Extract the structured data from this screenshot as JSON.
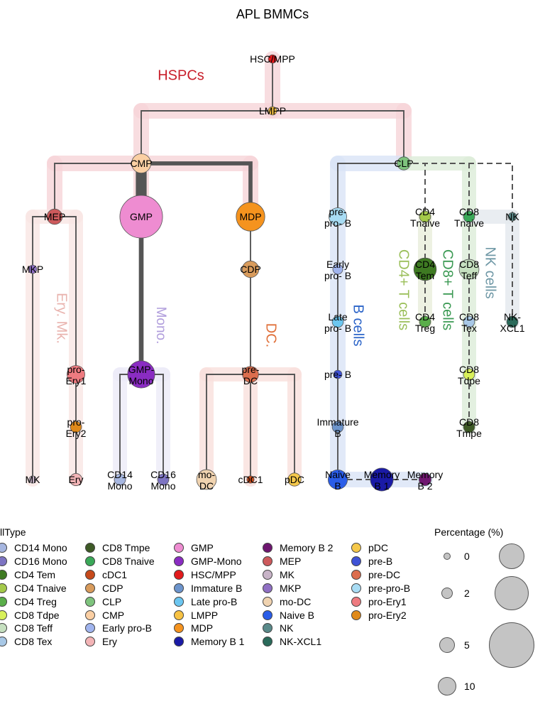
{
  "title": "APL BMMCs",
  "lineages": [
    {
      "id": "hspc",
      "label": "HSPCs",
      "color": "#f6d5d8",
      "textColor": "#c81e2a"
    },
    {
      "id": "ery",
      "label": "Ery. Mk.",
      "color": "#f9e6e4",
      "textColor": "#e9b3ae"
    },
    {
      "id": "mono",
      "label": "Mono.",
      "color": "#ecebf8",
      "textColor": "#b09ddc"
    },
    {
      "id": "dc",
      "label": "DC.",
      "color": "#f9e0dc",
      "textColor": "#e0703a"
    },
    {
      "id": "b",
      "label": "B cells",
      "color": "#d9e4f6",
      "textColor": "#2b64c8"
    },
    {
      "id": "cd4",
      "label": "CD4+ T cells",
      "color": "#e8eedb",
      "textColor": "#9bbf5a"
    },
    {
      "id": "cd8",
      "label": "CD8+ T cells",
      "color": "#dcecd8",
      "textColor": "#3c9a54"
    },
    {
      "id": "nk",
      "label": "NK cells",
      "color": "#e3e9ee",
      "textColor": "#6f98a6"
    }
  ],
  "nodes": [
    {
      "id": "HSC/MPP",
      "label": "HSC/MPP",
      "color": "#e21a1c",
      "pct": 0.1
    },
    {
      "id": "LMPP",
      "label": "LMPP",
      "color": "#f7c244",
      "pct": 0.1
    },
    {
      "id": "CMP",
      "label": "CMP",
      "color": "#fbcfa3",
      "pct": 1.5
    },
    {
      "id": "CLP",
      "label": "CLP",
      "color": "#7ec37d",
      "pct": 0.5
    },
    {
      "id": "MEP",
      "label": "MEP",
      "color": "#cd5a5c",
      "pct": 0.8
    },
    {
      "id": "GMP",
      "label": "GMP",
      "color": "#ee8cd1",
      "pct": 10
    },
    {
      "id": "MDP",
      "label": "MDP",
      "color": "#f5931e",
      "pct": 4
    },
    {
      "id": "MKP",
      "label": "MKP",
      "color": "#9070c4",
      "pct": 0.1
    },
    {
      "id": "CDP",
      "label": "CDP",
      "color": "#d89b5c",
      "pct": 1
    },
    {
      "id": "pro-Ery1",
      "label": "pro-\nEry1",
      "color": "#ee7b80",
      "pct": 1.2
    },
    {
      "id": "GMP-Mono",
      "label": "GMP-\nMono",
      "color": "#8a2cc2",
      "pct": 3.5
    },
    {
      "id": "pre-DC",
      "label": "pre-\nDC",
      "color": "#dc6e4e",
      "pct": 0.9
    },
    {
      "id": "pro-Ery2",
      "label": "pro-\nEry2",
      "color": "#e08a1a",
      "pct": 0.3
    },
    {
      "id": "MK",
      "label": "MK",
      "color": "#c8b4c8",
      "pct": 0.05
    },
    {
      "id": "Ery",
      "label": "Ery",
      "color": "#f3b4b6",
      "pct": 0.4
    },
    {
      "id": "CD14 Mono",
      "label": "CD14\nMono",
      "color": "#a6b6e0",
      "pct": 0.3
    },
    {
      "id": "CD16 Mono",
      "label": "CD16\nMono",
      "color": "#7d74c2",
      "pct": 0.3
    },
    {
      "id": "mo-DC",
      "label": "mo-\nDC",
      "color": "#f0d3b0",
      "pct": 1.6
    },
    {
      "id": "cDC1",
      "label": "cDC1",
      "color": "#c6491a",
      "pct": 0.05
    },
    {
      "id": "pDC",
      "label": "pDC",
      "color": "#f5c84a",
      "pct": 0.5
    },
    {
      "id": "pre-pro-B",
      "label": "pre-\npro- B",
      "color": "#a8dcf4",
      "pct": 1.2
    },
    {
      "id": "Early pro-B",
      "label": "Early\npro- B",
      "color": "#a0b4ee",
      "pct": 0.2
    },
    {
      "id": "Late pro-B",
      "label": "Late\npro- B",
      "color": "#6cc6f0",
      "pct": 0.3
    },
    {
      "id": "pre-B",
      "label": "pre- B",
      "color": "#3e52d6",
      "pct": 0.1
    },
    {
      "id": "Immature B",
      "label": "Immature\nB",
      "color": "#6c94cc",
      "pct": 0.3
    },
    {
      "id": "Naive B",
      "label": "Naive\nB",
      "color": "#2a5de8",
      "pct": 1.5
    },
    {
      "id": "Memory B 1",
      "label": "Memory\nB 1",
      "color": "#1a1aa6",
      "pct": 2.3
    },
    {
      "id": "Memory B 2",
      "label": "Memory\nB 2",
      "color": "#6e1670",
      "pct": 0.4
    },
    {
      "id": "CD4 Tnaive",
      "label": "CD4\nTnaive",
      "color": "#a4c94a",
      "pct": 0.3
    },
    {
      "id": "CD4 Tem",
      "label": "CD4\nTem",
      "color": "#3e7a22",
      "pct": 2.2
    },
    {
      "id": "CD4 Treg",
      "label": "CD4\nTreg",
      "color": "#5aae4a",
      "pct": 0.3
    },
    {
      "id": "CD8 Tnaive",
      "label": "CD8\nTnaive",
      "color": "#3aa858",
      "pct": 0.3
    },
    {
      "id": "CD8 Teff",
      "label": "CD8\nTeff",
      "color": "#c6e0c0",
      "pct": 1.6
    },
    {
      "id": "CD8 Tex",
      "label": "CD8\nTex",
      "color": "#a8c8e6",
      "pct": 0.3
    },
    {
      "id": "CD8 Tdpe",
      "label": "CD8\nTdpe",
      "color": "#d8f05a",
      "pct": 0.3
    },
    {
      "id": "CD8 Tmpe",
      "label": "CD8\nTmpe",
      "color": "#3e5a26",
      "pct": 0.3
    },
    {
      "id": "NK",
      "label": "NK",
      "color": "#5a8a8a",
      "pct": 0.1
    },
    {
      "id": "NK-XCL1",
      "label": "NK-\nXCL1",
      "color": "#2a6a5a",
      "pct": 0.3
    }
  ],
  "edges": [
    {
      "from": "HSC/MPP",
      "to": "LMPP",
      "weight": 1
    },
    {
      "from": "LMPP",
      "to": "CMP",
      "weight": 1
    },
    {
      "from": "LMPP",
      "to": "CLP",
      "weight": 1
    },
    {
      "from": "CMP",
      "to": "MEP",
      "weight": 1
    },
    {
      "from": "CMP",
      "to": "GMP",
      "weight": 8
    },
    {
      "from": "CMP",
      "to": "MDP",
      "weight": 3
    },
    {
      "from": "MEP",
      "to": "MKP",
      "weight": 1
    },
    {
      "from": "MKP",
      "to": "MK",
      "weight": 1
    },
    {
      "from": "MEP",
      "to": "pro-Ery1",
      "weight": 1
    },
    {
      "from": "pro-Ery1",
      "to": "pro-Ery2",
      "weight": 1
    },
    {
      "from": "pro-Ery2",
      "to": "Ery",
      "weight": 1
    },
    {
      "from": "GMP",
      "to": "GMP-Mono",
      "weight": 3.5
    },
    {
      "from": "GMP-Mono",
      "to": "CD14 Mono",
      "weight": 1
    },
    {
      "from": "GMP-Mono",
      "to": "CD16 Mono",
      "weight": 1
    },
    {
      "from": "MDP",
      "to": "CDP",
      "weight": 1
    },
    {
      "from": "CDP",
      "to": "pre-DC",
      "weight": 1
    },
    {
      "from": "pre-DC",
      "to": "mo-DC",
      "weight": 1
    },
    {
      "from": "pre-DC",
      "to": "cDC1",
      "weight": 1
    },
    {
      "from": "pre-DC",
      "to": "pDC",
      "weight": 1
    },
    {
      "from": "CLP",
      "to": "pre-pro-B",
      "weight": 1
    },
    {
      "from": "pre-pro-B",
      "to": "Early pro-B",
      "weight": 1
    },
    {
      "from": "Early pro-B",
      "to": "Late pro-B",
      "weight": 1
    },
    {
      "from": "Late pro-B",
      "to": "pre-B",
      "weight": 1
    },
    {
      "from": "pre-B",
      "to": "Immature B",
      "weight": 1
    },
    {
      "from": "Immature B",
      "to": "Naive B",
      "weight": 1
    },
    {
      "from": "Naive B",
      "to": "Memory B 1",
      "weight": 1,
      "style": "dashed"
    },
    {
      "from": "Naive B",
      "to": "Memory B 2",
      "weight": 1,
      "style": "dashed"
    },
    {
      "from": "CLP",
      "to": "CD4 Tnaive",
      "weight": 1,
      "style": "dashed"
    },
    {
      "from": "CLP",
      "to": "CD8 Tnaive",
      "weight": 1,
      "style": "dashed"
    },
    {
      "from": "CLP",
      "to": "NK",
      "weight": 1,
      "style": "dashed"
    },
    {
      "from": "CD4 Tnaive",
      "to": "CD4 Tem",
      "weight": 1,
      "style": "dashed"
    },
    {
      "from": "CD4 Tem",
      "to": "CD4 Treg",
      "weight": 1,
      "style": "dashed"
    },
    {
      "from": "CD8 Tnaive",
      "to": "CD8 Teff",
      "weight": 1,
      "style": "dashed"
    },
    {
      "from": "CD8 Teff",
      "to": "CD8 Tex",
      "weight": 1,
      "style": "dashed"
    },
    {
      "from": "CD8 Tex",
      "to": "CD8 Tdpe",
      "weight": 1,
      "style": "dashed"
    },
    {
      "from": "CD8 Tdpe",
      "to": "CD8 Tmpe",
      "weight": 1,
      "style": "dashed"
    },
    {
      "from": "NK",
      "to": "NK-XCL1",
      "weight": 1,
      "style": "dashed"
    }
  ],
  "legend": {
    "title": "llType",
    "items": [
      {
        "label": "CD14 Mono",
        "color": "#a6b6e0"
      },
      {
        "label": "CD16 Mono",
        "color": "#7d74c2"
      },
      {
        "label": "CD4 Tem",
        "color": "#3e7a22"
      },
      {
        "label": "CD4 Tnaive",
        "color": "#a4c94a"
      },
      {
        "label": "CD4 Treg",
        "color": "#5aae4a"
      },
      {
        "label": "CD8 Tdpe",
        "color": "#d8f05a"
      },
      {
        "label": "CD8 Teff",
        "color": "#c6e0c0"
      },
      {
        "label": "CD8 Tex",
        "color": "#a8c8e6"
      },
      {
        "label": "CD8 Tmpe",
        "color": "#3e5a26"
      },
      {
        "label": "CD8 Tnaive",
        "color": "#3aa858"
      },
      {
        "label": "cDC1",
        "color": "#c6491a"
      },
      {
        "label": "CDP",
        "color": "#d89b5c"
      },
      {
        "label": "CLP",
        "color": "#7ec37d"
      },
      {
        "label": "CMP",
        "color": "#fbcfa3"
      },
      {
        "label": "Early pro-B",
        "color": "#a0b4ee"
      },
      {
        "label": "Ery",
        "color": "#f3b4b6"
      },
      {
        "label": "GMP",
        "color": "#ee8cd1"
      },
      {
        "label": "GMP-Mono",
        "color": "#8a2cc2"
      },
      {
        "label": "HSC/MPP",
        "color": "#e21a1c"
      },
      {
        "label": "Immature B",
        "color": "#6c94cc"
      },
      {
        "label": "Late pro-B",
        "color": "#6cc6f0"
      },
      {
        "label": "LMPP",
        "color": "#f7c244"
      },
      {
        "label": "MDP",
        "color": "#f5931e"
      },
      {
        "label": "Memory B 1",
        "color": "#1a1aa6"
      },
      {
        "label": "Memory B 2",
        "color": "#6e1670"
      },
      {
        "label": "MEP",
        "color": "#cd5a5c"
      },
      {
        "label": "MK",
        "color": "#c8b4c8"
      },
      {
        "label": "MKP",
        "color": "#9070c4"
      },
      {
        "label": "mo-DC",
        "color": "#f0d3b0"
      },
      {
        "label": "Naive B",
        "color": "#2a5de8"
      },
      {
        "label": "NK",
        "color": "#5a8a8a"
      },
      {
        "label": "NK-XCL1",
        "color": "#2a6a5a"
      },
      {
        "label": "pDC",
        "color": "#f5c84a"
      },
      {
        "label": "pre-B",
        "color": "#3e52d6"
      },
      {
        "label": "pre-DC",
        "color": "#dc6e4e"
      },
      {
        "label": "pre-pro-B",
        "color": "#a8dcf4"
      },
      {
        "label": "pro-Ery1",
        "color": "#ee7b80"
      },
      {
        "label": "pro-Ery2",
        "color": "#e08a1a"
      }
    ]
  },
  "size_legend": {
    "title": "Percentage (%)",
    "items": [
      {
        "label": "0",
        "value": 0
      },
      {
        "label": "2",
        "value": 2
      },
      {
        "label": "5",
        "value": 5
      },
      {
        "label": "10",
        "value": 10
      }
    ]
  }
}
